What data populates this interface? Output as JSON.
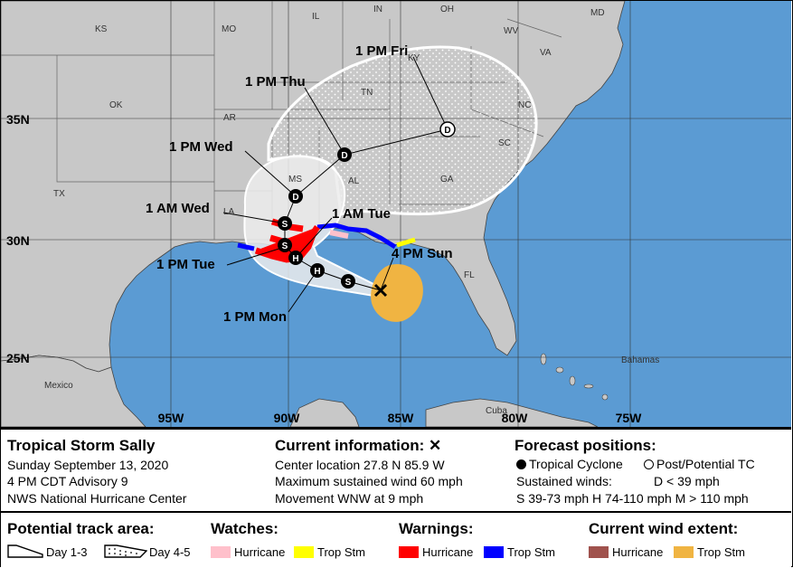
{
  "storm": {
    "name": "Tropical Storm Sally",
    "date": "Sunday September 13, 2020",
    "advisory": "4 PM CDT Advisory 9",
    "center": "NWS National Hurricane Center"
  },
  "current_info": {
    "heading": "Current information: ✕",
    "location": "Center location 27.8 N 85.9 W",
    "wind": "Maximum sustained wind 60 mph",
    "movement": "Movement WNW at 9 mph"
  },
  "forecast_positions": {
    "heading": "Forecast positions:",
    "tropical_cyclone": "Tropical Cyclone",
    "post_tc": "Post/Potential TC",
    "sustained_winds": "Sustained winds:",
    "d_label": "D < 39 mph",
    "categories": "S 39-73 mph  H 74-110 mph  M > 110 mph"
  },
  "legend": {
    "track_area": {
      "heading": "Potential track area:",
      "day13": "Day 1-3",
      "day45": "Day 4-5"
    },
    "watches": {
      "heading": "Watches:",
      "hurricane": "Hurricane",
      "trop_stm": "Trop Stm"
    },
    "warnings": {
      "heading": "Warnings:",
      "hurricane": "Hurricane",
      "trop_stm": "Trop Stm"
    },
    "wind_extent": {
      "heading": "Current wind extent:",
      "hurricane": "Hurricane",
      "trop_stm": "Trop Stm"
    }
  },
  "colors": {
    "water": "#5b9bd3",
    "land": "#c8c8c8",
    "hurricane_watch": "#ffc0cb",
    "trop_stm_watch": "#ffff00",
    "hurricane_warning": "#ff0000",
    "trop_stm_warning": "#0000ff",
    "hurricane_wind": "#a0524d",
    "trop_stm_wind": "#f0b442"
  },
  "map": {
    "latitude_labels": [
      "35N",
      "30N",
      "25N"
    ],
    "longitude_labels": [
      "95W",
      "90W",
      "85W",
      "80W",
      "75W"
    ],
    "state_labels": [
      "KS",
      "MO",
      "IL",
      "IN",
      "OH",
      "WV",
      "VA",
      "MD",
      "KY",
      "OK",
      "AR",
      "TN",
      "NC",
      "SC",
      "GA",
      "AL",
      "MS",
      "LA",
      "TX",
      "FL"
    ],
    "place_labels": [
      "Bahamas",
      "Mexico",
      "Cuba"
    ],
    "time_labels": [
      "1 PM Fri",
      "1 PM Thu",
      "1 PM Wed",
      "1 AM Wed",
      "1 AM Tue",
      "4 PM Sun",
      "1 PM Tue",
      "1 PM Mon"
    ],
    "point_letters": [
      "D",
      "D",
      "D",
      "S",
      "S",
      "H",
      "H",
      "S"
    ]
  }
}
